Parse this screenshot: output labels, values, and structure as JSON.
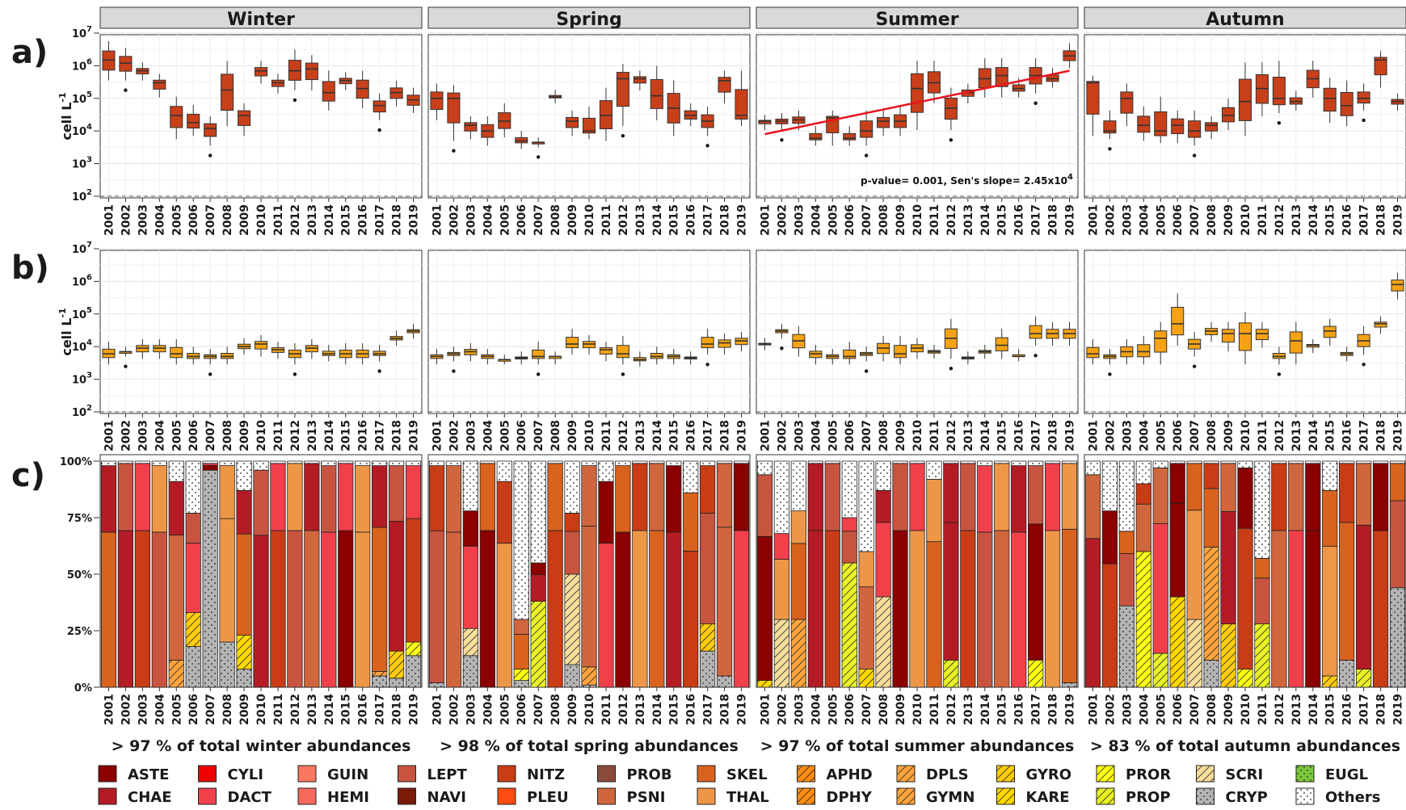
{
  "chart_data": {
    "type": "box",
    "panel_labels": [
      "a)",
      "b)",
      "c)"
    ],
    "seasons": [
      "Winter",
      "Spring",
      "Summer",
      "Autumn"
    ],
    "years": [
      "2001",
      "2002",
      "2003",
      "2004",
      "2005",
      "2006",
      "2007",
      "2008",
      "2009",
      "2010",
      "2011",
      "2012",
      "2013",
      "2014",
      "2015",
      "2016",
      "2017",
      "2018",
      "2019"
    ],
    "ylabel_ab": "cell L-1",
    "y_log_ticks": [
      "10^2",
      "10^3",
      "10^4",
      "10^5",
      "10^6",
      "10^7"
    ],
    "y_pct_ticks": [
      "0%",
      "25%",
      "50%",
      "75%",
      "100%"
    ],
    "reference_line": 100,
    "colors": {
      "panel_a": "#c8401a",
      "panel_b": "#f5a214",
      "trend": "#e8141e"
    },
    "panel_a": {
      "Winter": [
        [
          1500000.0,
          500000.0,
          4000000.0
        ],
        [
          1200000.0,
          500000.0,
          2500000.0
        ],
        [
          700000.0,
          500000.0,
          900000.0
        ],
        [
          300000.0,
          150000.0,
          400000.0
        ],
        [
          30000.0,
          8000.0,
          80000.0
        ],
        [
          18000.0,
          10000.0,
          45000.0
        ],
        [
          12000.0,
          5000.0,
          20000.0
        ],
        [
          180000.0,
          20000.0,
          1000000.0
        ],
        [
          30000.0,
          10000.0,
          50000.0
        ],
        [
          700000.0,
          400000.0,
          1000000.0
        ],
        [
          300000.0,
          200000.0,
          400000.0
        ],
        [
          700000.0,
          250000.0,
          2200000.0
        ],
        [
          800000.0,
          250000.0,
          1500000.0
        ],
        [
          150000.0,
          60000.0,
          500000.0
        ],
        [
          350000.0,
          250000.0,
          450000.0
        ],
        [
          200000.0,
          70000.0,
          500000.0
        ],
        [
          60000.0,
          30000.0,
          100000.0
        ],
        [
          150000.0,
          80000.0,
          250000.0
        ],
        [
          90000.0,
          50000.0,
          150000.0
        ]
      ],
      "Spring": [
        [
          100000.0,
          30000.0,
          200000.0
        ],
        [
          100000.0,
          7000.0,
          180000.0
        ],
        [
          15000.0,
          8000.0,
          20000.0
        ],
        [
          10000.0,
          5000.0,
          20000.0
        ],
        [
          20000.0,
          9000.0,
          50000.0
        ],
        [
          5000.0,
          4000.0,
          7000.0
        ],
        [
          4500.0,
          4500.0,
          4500.0
        ],
        [
          110000.0,
          100000.0,
          130000.0
        ],
        [
          20000.0,
          10000.0,
          30000.0
        ],
        [
          10000.0,
          8000.0,
          40000.0
        ],
        [
          30000.0,
          7000.0,
          150000.0
        ],
        [
          400000.0,
          20000.0,
          800000.0
        ],
        [
          400000.0,
          250000.0,
          500000.0
        ],
        [
          120000.0,
          30000.0,
          700000.0
        ],
        [
          50000.0,
          10000.0,
          250000.0
        ],
        [
          30000.0,
          20000.0,
          50000.0
        ],
        [
          20000.0,
          10000.0,
          40000.0
        ],
        [
          350000.0,
          100000.0,
          500000.0
        ],
        [
          30000.0,
          20000.0,
          500000.0
        ]
      ],
      "Summer": [
        [
          20000.0,
          15000.0,
          22000.0
        ],
        [
          20000.0,
          15000.0,
          25000.0
        ],
        [
          22000.0,
          15000.0,
          30000.0
        ],
        [
          6000.0,
          5000.0,
          10000.0
        ],
        [
          25000.0,
          5000.0,
          30000.0
        ],
        [
          6000.0,
          5000.0,
          10000.0
        ],
        [
          10000.0,
          5000.0,
          30000.0
        ],
        [
          20000.0,
          10000.0,
          30000.0
        ],
        [
          20000.0,
          10000.0,
          40000.0
        ],
        [
          200000.0,
          15000.0,
          1000000.0
        ],
        [
          300000.0,
          100000.0,
          1000000.0
        ],
        [
          50000.0,
          15000.0,
          150000.0
        ],
        [
          150000.0,
          100000.0,
          200000.0
        ],
        [
          400000.0,
          150000.0,
          1200000.0
        ],
        [
          500000.0,
          150000.0,
          1200000.0
        ],
        [
          200000.0,
          150000.0,
          300000.0
        ],
        [
          500000.0,
          200000.0,
          1200000.0
        ],
        [
          400000.0,
          300000.0,
          600000.0
        ],
        [
          2000000.0,
          1200000.0,
          3500000.0
        ]
      ],
      "Autumn": [
        [
          300000.0,
          10000.0,
          350000.0
        ],
        [
          10000.0,
          8000.0,
          30000.0
        ],
        [
          100000.0,
          20000.0,
          200000.0
        ],
        [
          15000.0,
          7000.0,
          40000.0
        ],
        [
          10000.0,
          6000.0,
          80000.0
        ],
        [
          15000.0,
          6000.0,
          30000.0
        ],
        [
          10000.0,
          5000.0,
          30000.0
        ],
        [
          15000.0,
          8000.0,
          20000.0
        ],
        [
          30000.0,
          15000.0,
          70000.0
        ],
        [
          80000.0,
          10000.0,
          900000.0
        ],
        [
          200000.0,
          40000.0,
          900000.0
        ],
        [
          100000.0,
          50000.0,
          1000000.0
        ],
        [
          80000.0,
          60000.0,
          120000.0
        ],
        [
          400000.0,
          150000.0,
          1000000.0
        ],
        [
          100000.0,
          25000.0,
          300000.0
        ],
        [
          60000.0,
          20000.0,
          250000.0
        ],
        [
          100000.0,
          60000.0,
          200000.0
        ],
        [
          1500000.0,
          300000.0,
          2000000.0
        ],
        [
          80000.0,
          60000.0,
          100000.0
        ]
      ]
    },
    "panel_b": {
      "Winter": [
        [
          6000.0,
          4000.0,
          10000.0
        ],
        [
          7000.0,
          7000.0,
          7000.0
        ],
        [
          9000.0,
          6000.0,
          12000.0
        ],
        [
          9000.0,
          6000.0,
          12000.0
        ],
        [
          6000.0,
          4000.0,
          12000.0
        ],
        [
          5000.0,
          4000.0,
          7000.0
        ],
        [
          5000.0,
          4000.0,
          6000.0
        ],
        [
          5000.0,
          4000.0,
          7000.0
        ],
        [
          10000.0,
          8000.0,
          13000.0
        ],
        [
          12000.0,
          7000.0,
          16000.0
        ],
        [
          8000.0,
          6000.0,
          10000.0
        ],
        [
          6000.0,
          4000.0,
          9000.0
        ],
        [
          9000.0,
          6000.0,
          12000.0
        ],
        [
          6000.0,
          5000.0,
          8000.0
        ],
        [
          6000.0,
          4000.0,
          9000.0
        ],
        [
          6000.0,
          4000.0,
          9000.0
        ],
        [
          6000.0,
          5000.0,
          8000.0
        ],
        [
          18000.0,
          15000.0,
          22000.0
        ],
        [
          30000.0,
          25000.0,
          35000.0
        ]
      ],
      "Spring": [
        [
          5000.0,
          4000.0,
          6000.0
        ],
        [
          6000.0,
          5000.0,
          7000.0
        ],
        [
          7000.0,
          5000.0,
          9000.0
        ],
        [
          5000.0,
          4000.0,
          6000.0
        ],
        [
          4000.0,
          4000.0,
          4000.0
        ],
        [
          4500.0,
          4000.0,
          5000.0
        ],
        [
          5000.0,
          4000.0,
          10000.0
        ],
        [
          5000.0,
          4000.0,
          5000.0
        ],
        [
          12000.0,
          8000.0,
          25000.0
        ],
        [
          12000.0,
          8000.0,
          16000.0
        ],
        [
          8000.0,
          5000.0,
          10000.0
        ],
        [
          6000.0,
          4000.0,
          15000.0
        ],
        [
          4000.0,
          3500.0,
          5000.0
        ],
        [
          5000.0,
          4000.0,
          7000.0
        ],
        [
          5000.0,
          4000.0,
          6000.0
        ],
        [
          4500.0,
          4000.0,
          5000.0
        ],
        [
          12000.0,
          8000.0,
          25000.0
        ],
        [
          13000.0,
          8000.0,
          18000.0
        ],
        [
          15000.0,
          10000.0,
          20000.0
        ]
      ],
      "Summer": [
        [
          12000.0,
          11000.0,
          13000.0
        ],
        [
          30000.0,
          25000.0,
          35000.0
        ],
        [
          15000.0,
          7000.0,
          30000.0
        ],
        [
          6000.0,
          4000.0,
          8000.0
        ],
        [
          5000.0,
          4000.0,
          6000.0
        ],
        [
          5000.0,
          4000.0,
          10000.0
        ],
        [
          6000.0,
          5000.0,
          7000.0
        ],
        [
          9000.0,
          5000.0,
          15000.0
        ],
        [
          6000.0,
          4000.0,
          15000.0
        ],
        [
          9000.0,
          6000.0,
          13000.0
        ],
        [
          7000.0,
          6000.0,
          8000.0
        ],
        [
          18000.0,
          6000.0,
          50000.0
        ],
        [
          4500.0,
          4000.0,
          5000.0
        ],
        [
          7000.0,
          6000.0,
          8000.0
        ],
        [
          11000.0,
          6000.0,
          25000.0
        ],
        [
          5000.0,
          5000.0,
          6000.0
        ],
        [
          25000.0,
          15000.0,
          60000.0
        ],
        [
          25000.0,
          15000.0,
          40000.0
        ],
        [
          25000.0,
          15000.0,
          40000.0
        ]
      ],
      "Autumn": [
        [
          6000.0,
          4000.0,
          12000.0
        ],
        [
          5000.0,
          4000.0,
          6000.0
        ],
        [
          7000.0,
          4000.0,
          12000.0
        ],
        [
          7000.0,
          4000.0,
          15000.0
        ],
        [
          18000.0,
          4000.0,
          40000.0
        ],
        [
          50000.0,
          15000.0,
          300000.0
        ],
        [
          12000.0,
          7000.0,
          20000.0
        ],
        [
          30000.0,
          20000.0,
          40000.0
        ],
        [
          25000.0,
          10000.0,
          40000.0
        ],
        [
          25000.0,
          4000.0,
          80000.0
        ],
        [
          25000.0,
          13000.0,
          40000.0
        ],
        [
          5000.0,
          4000.0,
          7000.0
        ],
        [
          15000.0,
          4000.0,
          40000.0
        ],
        [
          11000.0,
          9000.0,
          12000.0
        ],
        [
          30000.0,
          15000.0,
          50000.0
        ],
        [
          6000.0,
          5000.0,
          7000.0
        ],
        [
          15000.0,
          8000.0,
          30000.0
        ],
        [
          50000.0,
          35000.0,
          60000.0
        ],
        [
          800000.0,
          400000.0,
          1300000.0
        ]
      ]
    },
    "panel_c_others_pct": {
      "Winter": [
        2,
        1,
        1,
        2,
        9,
        23,
        1,
        2,
        13,
        4,
        1,
        1,
        1,
        2,
        1,
        2,
        2,
        2,
        2
      ],
      "Spring": [
        2,
        2,
        22,
        1,
        9,
        70,
        45,
        1,
        23,
        2,
        9,
        2,
        1,
        1,
        2,
        14,
        2,
        1,
        1
      ],
      "Summer": [
        6,
        32,
        22,
        1,
        1,
        25,
        40,
        13,
        1,
        1,
        8,
        1,
        1,
        2,
        1,
        2,
        2,
        1,
        1
      ],
      "Autumn": [
        6,
        22,
        31,
        10,
        3,
        1,
        1,
        1,
        1,
        3,
        43,
        1,
        1,
        1,
        13,
        1,
        1,
        1,
        1
      ]
    },
    "panel_c_hatched_pct": {
      "Winter": [
        0,
        0,
        0,
        0,
        12,
        15,
        0,
        0,
        15,
        0,
        0,
        0,
        0,
        0,
        0,
        0,
        2,
        12,
        6
      ],
      "Spring": [
        0,
        0,
        12,
        0,
        0,
        5,
        38,
        0,
        40,
        8,
        0,
        0,
        0,
        0,
        0,
        0,
        12,
        0,
        0
      ],
      "Summer": [
        3,
        30,
        30,
        0,
        0,
        55,
        8,
        40,
        0,
        0,
        0,
        12,
        0,
        0,
        0,
        0,
        12,
        0,
        0
      ],
      "Autumn": [
        0,
        0,
        0,
        60,
        15,
        40,
        30,
        50,
        28,
        8,
        28,
        0,
        0,
        0,
        5,
        0,
        8,
        0,
        0
      ]
    },
    "panel_c_cryp_pct": {
      "Winter": [
        0,
        0,
        0,
        0,
        0,
        18,
        96,
        20,
        8,
        0,
        0,
        0,
        0,
        0,
        0,
        0,
        5,
        4,
        14
      ],
      "Spring": [
        2,
        0,
        14,
        0,
        0,
        3,
        0,
        0,
        10,
        1,
        0,
        0,
        0,
        0,
        0,
        0,
        16,
        5,
        0
      ],
      "Summer": [
        0,
        0,
        0,
        0,
        0,
        0,
        0,
        0,
        0,
        0,
        0,
        0,
        0,
        0,
        0,
        0,
        0,
        0,
        2
      ],
      "Autumn": [
        0,
        0,
        36,
        0,
        0,
        0,
        0,
        12,
        0,
        0,
        0,
        0,
        0,
        0,
        0,
        12,
        0,
        0,
        44
      ]
    },
    "annotation": "p-value= 0.001, Sen's slope= 2.45x10",
    "annotation_exp": "4",
    "trend_summer": {
      "x_from": "2001",
      "y_from": 8000,
      "x_to": "2019",
      "y_to": 700000
    },
    "season_notes": [
      "> 97 % of total winter abundances",
      "> 98 % of total spring abundances",
      "> 97 % of total summer abundances",
      "> 83 % of total autumn abundances"
    ],
    "legend": [
      {
        "code": "ASTE",
        "color": "#8b0000",
        "pattern": "solid"
      },
      {
        "code": "CHAE",
        "color": "#b31c24",
        "pattern": "solid"
      },
      {
        "code": "CYLI",
        "color": "#ee0000",
        "pattern": "solid"
      },
      {
        "code": "DACT",
        "color": "#f2404a",
        "pattern": "solid"
      },
      {
        "code": "GUIN",
        "color": "#f87860",
        "pattern": "solid"
      },
      {
        "code": "HEMI",
        "color": "#f66a5c",
        "pattern": "solid"
      },
      {
        "code": "LEPT",
        "color": "#c85440",
        "pattern": "solid"
      },
      {
        "code": "NAVI",
        "color": "#7a1a08",
        "pattern": "solid"
      },
      {
        "code": "NITZ",
        "color": "#c83c16",
        "pattern": "solid"
      },
      {
        "code": "PLEU",
        "color": "#ff4c10",
        "pattern": "solid"
      },
      {
        "code": "PROB",
        "color": "#8b4a3a",
        "pattern": "solid"
      },
      {
        "code": "PSNI",
        "color": "#d0663e",
        "pattern": "solid"
      },
      {
        "code": "SKEL",
        "color": "#d8621e",
        "pattern": "solid"
      },
      {
        "code": "THAL",
        "color": "#ee9648",
        "pattern": "solid"
      },
      {
        "code": "APHD",
        "color": "#ff8c14",
        "pattern": "hatch"
      },
      {
        "code": "DPHY",
        "color": "#ff8c14",
        "pattern": "hatch"
      },
      {
        "code": "DPLS",
        "color": "#ffa43c",
        "pattern": "hatch"
      },
      {
        "code": "GYMN",
        "color": "#ffa43c",
        "pattern": "hatch"
      },
      {
        "code": "GYRO",
        "color": "#ffcc10",
        "pattern": "hatch"
      },
      {
        "code": "KARE",
        "color": "#ffd800",
        "pattern": "hatch"
      },
      {
        "code": "PROR",
        "color": "#ffff14",
        "pattern": "hatch"
      },
      {
        "code": "PROP",
        "color": "#e8f028",
        "pattern": "hatch"
      },
      {
        "code": "SCRI",
        "color": "#f8dc9a",
        "pattern": "hatch"
      },
      {
        "code": "CRYP",
        "color": "#b4b4b4",
        "pattern": "dots"
      },
      {
        "code": "EUGL",
        "color": "#7cc83c",
        "pattern": "dots"
      },
      {
        "code": "Others",
        "color": "#ffffff",
        "pattern": "dots"
      }
    ]
  }
}
